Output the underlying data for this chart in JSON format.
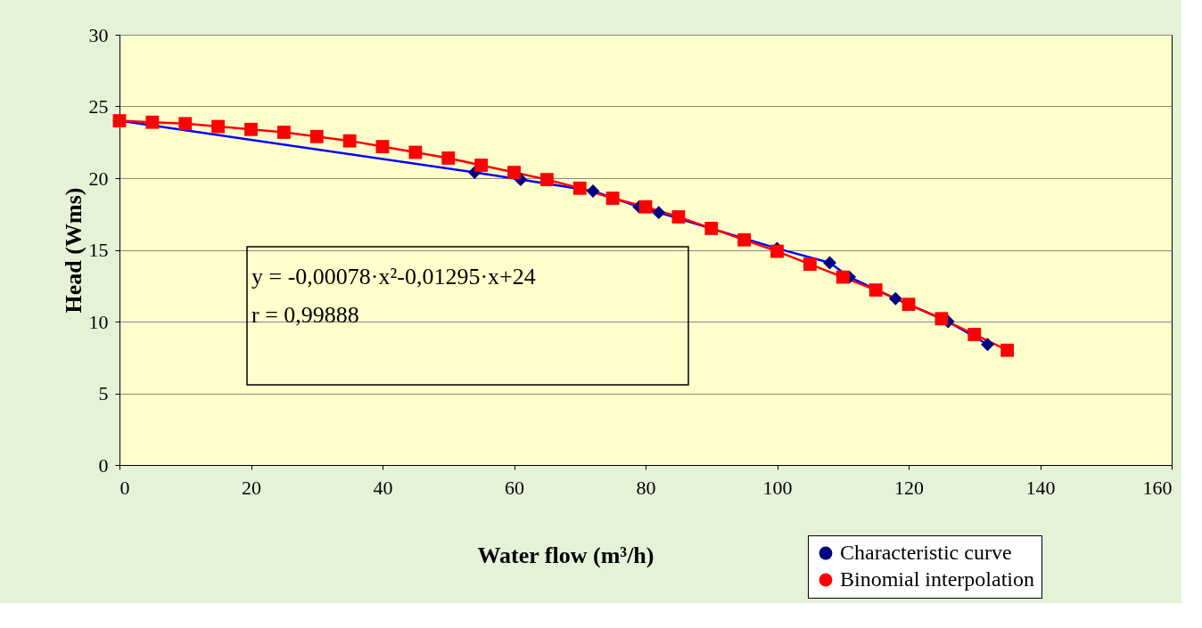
{
  "chart_data": {
    "type": "line",
    "xlabel": "Water flow (m³/h)",
    "ylabel": "Head (Wms)",
    "xlim": [
      0,
      160
    ],
    "xticks": [
      0,
      20,
      40,
      60,
      80,
      100,
      120,
      140,
      160
    ],
    "ylim": [
      0,
      30
    ],
    "yticks": [
      0,
      5,
      10,
      15,
      20,
      25,
      30
    ],
    "grid": "y",
    "legend": "bottom right",
    "annotations": [
      "y = -0,00078·x²-0,01295·x+24",
      "r = 0,99888"
    ],
    "series": [
      {
        "name": "Characteristic curve",
        "color": "#0000ff",
        "marker": "diamond",
        "x": [
          0,
          54,
          61,
          72,
          79,
          82,
          100,
          108,
          111,
          118,
          126,
          132
        ],
        "values": [
          24,
          20.4,
          19.9,
          19.1,
          18.0,
          17.6,
          15.1,
          14.1,
          13.1,
          11.6,
          10.0,
          8.4
        ]
      },
      {
        "name": "Binomial interpolation",
        "color": "#ff0000",
        "marker": "square",
        "x": [
          0,
          5,
          10,
          15,
          20,
          25,
          30,
          35,
          40,
          45,
          50,
          55,
          60,
          65,
          70,
          75,
          80,
          85,
          90,
          95,
          100,
          105,
          110,
          115,
          120,
          125,
          130,
          135
        ],
        "values": [
          24.0,
          23.9,
          23.8,
          23.6,
          23.4,
          23.2,
          22.9,
          22.6,
          22.2,
          21.8,
          21.4,
          20.9,
          20.4,
          19.9,
          19.3,
          18.6,
          18.0,
          17.3,
          16.5,
          15.7,
          14.9,
          14.0,
          13.1,
          12.2,
          11.2,
          10.2,
          9.1,
          8.0
        ]
      }
    ]
  }
}
